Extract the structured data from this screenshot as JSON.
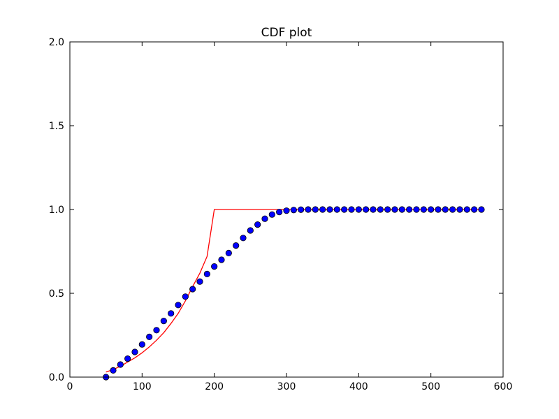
{
  "chart_data": {
    "type": "line",
    "title": "CDF plot",
    "xlabel": "",
    "ylabel": "",
    "xlim": [
      0,
      600
    ],
    "ylim": [
      0,
      2
    ],
    "x_ticks": [
      "0",
      "100",
      "200",
      "300",
      "400",
      "500",
      "600"
    ],
    "y_ticks": [
      "0.0",
      "0.5",
      "1.0",
      "1.5",
      "2.0"
    ],
    "grid": false,
    "series": [
      {
        "kind": "line",
        "color": "#ff0000",
        "x": [
          50,
          60,
          70,
          80,
          90,
          100,
          110,
          120,
          130,
          140,
          150,
          160,
          170,
          180,
          190,
          200,
          300,
          570
        ],
        "y": [
          0.03,
          0.045,
          0.065,
          0.09,
          0.115,
          0.145,
          0.18,
          0.22,
          0.265,
          0.32,
          0.38,
          0.455,
          0.54,
          0.62,
          0.72,
          1.0,
          1.0,
          1.0
        ]
      },
      {
        "kind": "scatter",
        "color": "#0000ff",
        "x": [
          50,
          60,
          70,
          80,
          90,
          100,
          110,
          120,
          130,
          140,
          150,
          160,
          170,
          180,
          190,
          200,
          210,
          220,
          230,
          240,
          250,
          260,
          270,
          280,
          290,
          300,
          310,
          320,
          330,
          340,
          350,
          360,
          370,
          380,
          390,
          400,
          410,
          420,
          430,
          440,
          450,
          460,
          470,
          480,
          490,
          500,
          510,
          520,
          530,
          540,
          550,
          560,
          570
        ],
        "y": [
          0.0,
          0.04,
          0.075,
          0.11,
          0.15,
          0.195,
          0.24,
          0.28,
          0.335,
          0.38,
          0.43,
          0.48,
          0.525,
          0.57,
          0.615,
          0.66,
          0.7,
          0.74,
          0.785,
          0.83,
          0.875,
          0.91,
          0.945,
          0.97,
          0.985,
          0.993,
          0.997,
          0.999,
          1.0,
          1.0,
          1.0,
          1.0,
          1.0,
          1.0,
          1.0,
          1.0,
          1.0,
          1.0,
          1.0,
          1.0,
          1.0,
          1.0,
          1.0,
          1.0,
          1.0,
          1.0,
          1.0,
          1.0,
          1.0,
          1.0,
          1.0,
          1.0,
          1.0
        ]
      }
    ]
  }
}
